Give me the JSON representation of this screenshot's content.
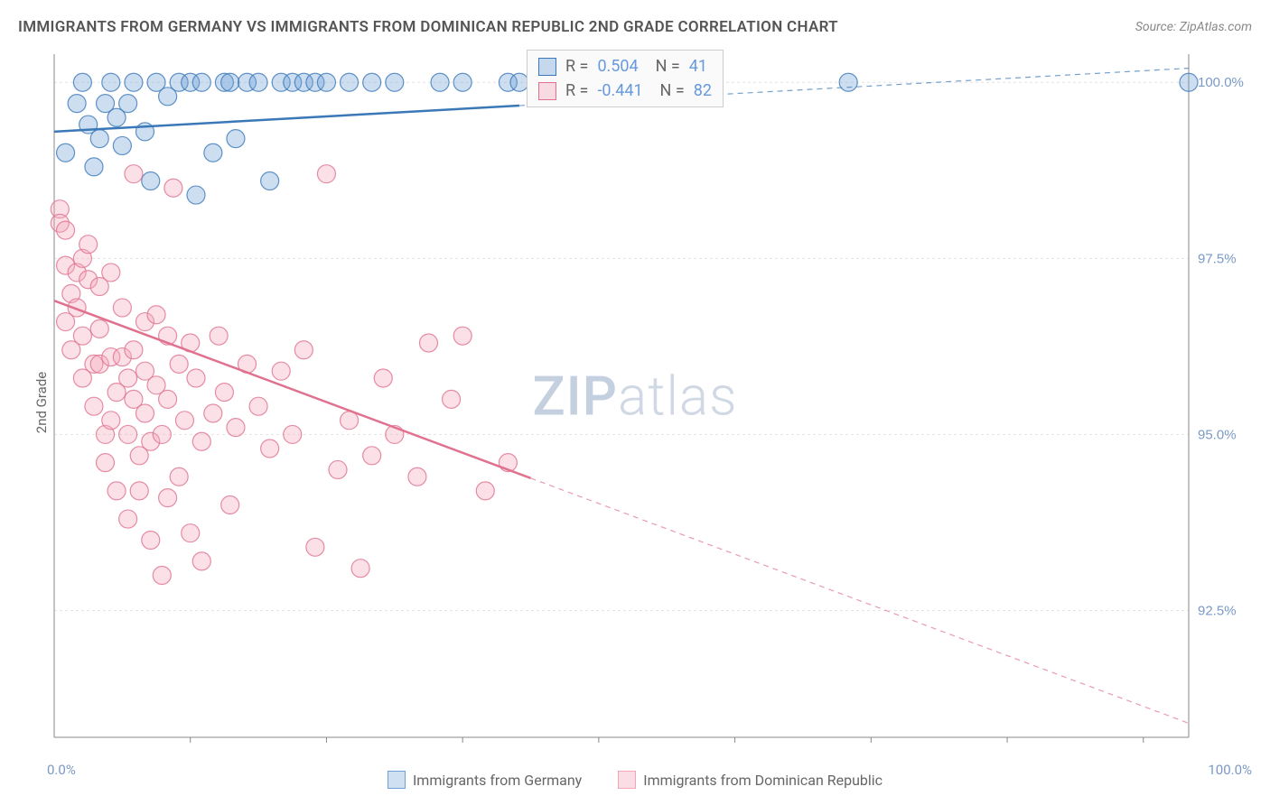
{
  "title": "IMMIGRANTS FROM GERMANY VS IMMIGRANTS FROM DOMINICAN REPUBLIC 2ND GRADE CORRELATION CHART",
  "source": "Source: ZipAtlas.com",
  "ylabel": "2nd Grade",
  "watermark_a": "ZIP",
  "watermark_b": "atlas",
  "chart": {
    "type": "scatter",
    "background_color": "#ffffff",
    "grid_color": "#e4e4e4",
    "axis_color": "#888888",
    "xlim": [
      0,
      100
    ],
    "ylim": [
      90.7,
      100.4
    ],
    "ytick_step": 2.5,
    "ytick_labels": [
      "92.5%",
      "95.0%",
      "97.5%",
      "100.0%"
    ],
    "xtick_positions": [
      12,
      24,
      36,
      48,
      60,
      72,
      84,
      96
    ],
    "x_min_label": "0.0%",
    "x_max_label": "100.0%",
    "marker_radius": 10,
    "marker_opacity": 0.35,
    "series": [
      {
        "name": "Immigrants from Germany",
        "color": "#6fa0d6",
        "stroke": "#3b78b8",
        "R": "0.504",
        "N": "41",
        "trend": {
          "x1": 0,
          "y1": 99.3,
          "x2": 100,
          "y2": 100.2,
          "solid_until": 41
        },
        "points": [
          [
            1,
            99.0
          ],
          [
            2,
            99.7
          ],
          [
            2.5,
            100.0
          ],
          [
            3,
            99.4
          ],
          [
            3.5,
            98.8
          ],
          [
            4,
            99.2
          ],
          [
            4.5,
            99.7
          ],
          [
            5,
            100.0
          ],
          [
            5.5,
            99.5
          ],
          [
            6,
            99.1
          ],
          [
            6.5,
            99.7
          ],
          [
            7,
            100.0
          ],
          [
            8,
            99.3
          ],
          [
            8.5,
            98.6
          ],
          [
            9,
            100.0
          ],
          [
            10,
            99.8
          ],
          [
            11,
            100.0
          ],
          [
            12,
            100.0
          ],
          [
            12.5,
            98.4
          ],
          [
            13,
            100.0
          ],
          [
            14,
            99.0
          ],
          [
            15,
            100.0
          ],
          [
            15.5,
            100.0
          ],
          [
            16,
            99.2
          ],
          [
            17,
            100.0
          ],
          [
            18,
            100.0
          ],
          [
            19,
            98.6
          ],
          [
            20,
            100.0
          ],
          [
            21,
            100.0
          ],
          [
            22,
            100.0
          ],
          [
            23,
            100.0
          ],
          [
            24,
            100.0
          ],
          [
            26,
            100.0
          ],
          [
            28,
            100.0
          ],
          [
            30,
            100.0
          ],
          [
            34,
            100.0
          ],
          [
            36,
            100.0
          ],
          [
            40,
            100.0
          ],
          [
            41,
            100.0
          ],
          [
            70,
            100.0
          ],
          [
            100,
            100.0
          ]
        ]
      },
      {
        "name": "Immigrants from Dominican Republic",
        "color": "#f4a6b9",
        "stroke": "#e0718f",
        "R": "-0.441",
        "N": "82",
        "trend": {
          "x1": 0,
          "y1": 96.9,
          "x2": 100,
          "y2": 90.9,
          "solid_until": 42
        },
        "points": [
          [
            0.5,
            98.2
          ],
          [
            0.5,
            98.0
          ],
          [
            1,
            97.9
          ],
          [
            1,
            97.4
          ],
          [
            1.5,
            97.0
          ],
          [
            1,
            96.6
          ],
          [
            1.5,
            96.2
          ],
          [
            2,
            97.3
          ],
          [
            2,
            96.8
          ],
          [
            2.5,
            97.5
          ],
          [
            2.5,
            96.4
          ],
          [
            2.5,
            95.8
          ],
          [
            3,
            97.2
          ],
          [
            3,
            97.7
          ],
          [
            3.5,
            96.0
          ],
          [
            3.5,
            95.4
          ],
          [
            4,
            97.1
          ],
          [
            4,
            96.5
          ],
          [
            4,
            96.0
          ],
          [
            4.5,
            95.0
          ],
          [
            4.5,
            94.6
          ],
          [
            5,
            97.3
          ],
          [
            5,
            96.1
          ],
          [
            5,
            95.2
          ],
          [
            5.5,
            95.6
          ],
          [
            5.5,
            94.2
          ],
          [
            6,
            96.8
          ],
          [
            6,
            96.1
          ],
          [
            6.5,
            95.8
          ],
          [
            6.5,
            95.0
          ],
          [
            6.5,
            93.8
          ],
          [
            7,
            98.7
          ],
          [
            7,
            96.2
          ],
          [
            7,
            95.5
          ],
          [
            7.5,
            94.7
          ],
          [
            7.5,
            94.2
          ],
          [
            8,
            96.6
          ],
          [
            8,
            95.9
          ],
          [
            8,
            95.3
          ],
          [
            8.5,
            94.9
          ],
          [
            8.5,
            93.5
          ],
          [
            9,
            96.7
          ],
          [
            9,
            95.7
          ],
          [
            9.5,
            95.0
          ],
          [
            9.5,
            93.0
          ],
          [
            10,
            96.4
          ],
          [
            10,
            95.5
          ],
          [
            10,
            94.1
          ],
          [
            10.5,
            98.5
          ],
          [
            11,
            96.0
          ],
          [
            11,
            94.4
          ],
          [
            11.5,
            95.2
          ],
          [
            12,
            96.3
          ],
          [
            12,
            93.6
          ],
          [
            12.5,
            95.8
          ],
          [
            13,
            94.9
          ],
          [
            13,
            93.2
          ],
          [
            14,
            95.3
          ],
          [
            14.5,
            96.4
          ],
          [
            15,
            95.6
          ],
          [
            15.5,
            94.0
          ],
          [
            16,
            95.1
          ],
          [
            17,
            96.0
          ],
          [
            18,
            95.4
          ],
          [
            19,
            94.8
          ],
          [
            20,
            95.9
          ],
          [
            21,
            95.0
          ],
          [
            22,
            96.2
          ],
          [
            23,
            93.4
          ],
          [
            24,
            98.7
          ],
          [
            25,
            94.5
          ],
          [
            26,
            95.2
          ],
          [
            27,
            93.1
          ],
          [
            28,
            94.7
          ],
          [
            29,
            95.8
          ],
          [
            30,
            95.0
          ],
          [
            32,
            94.4
          ],
          [
            33,
            96.3
          ],
          [
            35,
            95.5
          ],
          [
            36,
            96.4
          ],
          [
            38,
            94.2
          ],
          [
            40,
            94.6
          ]
        ]
      }
    ]
  },
  "legend": {
    "items": [
      {
        "label": "Immigrants from Germany",
        "fill": "#cfe0f2",
        "stroke": "#6fa0d6"
      },
      {
        "label": "Immigrants from Dominican Republic",
        "fill": "#fbdde5",
        "stroke": "#f4a6b9"
      }
    ]
  }
}
